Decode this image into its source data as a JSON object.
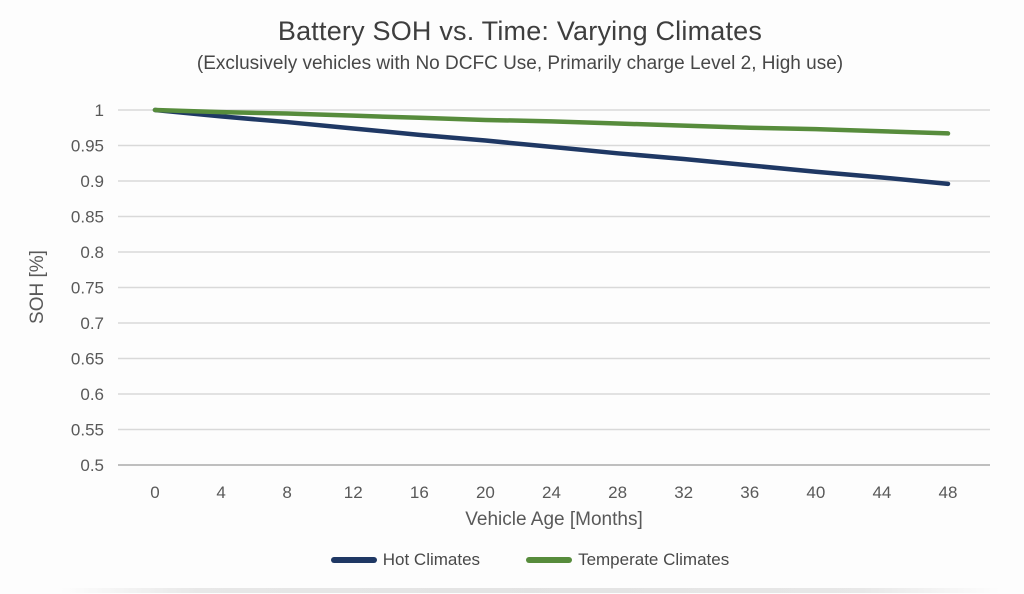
{
  "chart_data": {
    "type": "line",
    "title": "Battery SOH vs. Time: Varying Climates",
    "subtitle": "(Exclusively vehicles with No DCFC Use, Primarily charge Level 2, High use)",
    "xlabel": "Vehicle Age [Months]",
    "ylabel": "SOH [%]",
    "x": [
      0,
      4,
      8,
      12,
      16,
      20,
      24,
      28,
      32,
      36,
      40,
      44,
      48
    ],
    "x_tick_labels": [
      "0",
      "4",
      "8",
      "12",
      "16",
      "20",
      "24",
      "28",
      "32",
      "36",
      "40",
      "44",
      "48"
    ],
    "y_ticks": [
      1,
      0.95,
      0.9,
      0.85,
      0.8,
      0.75,
      0.7,
      0.65,
      0.6,
      0.55,
      0.5
    ],
    "y_tick_labels": [
      "1",
      "0.95",
      "0.9",
      "0.85",
      "0.8",
      "0.75",
      "0.7",
      "0.65",
      "0.6",
      "0.55",
      "0.5"
    ],
    "ylim": [
      0.5,
      1.0
    ],
    "grid": "horizontal",
    "legend_position": "bottom",
    "series": [
      {
        "name": "Hot Climates",
        "color": "#1f3864",
        "values": [
          1.0,
          0.991,
          0.983,
          0.974,
          0.965,
          0.957,
          0.948,
          0.939,
          0.931,
          0.922,
          0.913,
          0.905,
          0.896
        ]
      },
      {
        "name": "Temperate Climates",
        "color": "#578c3c",
        "values": [
          1.0,
          0.997,
          0.995,
          0.992,
          0.989,
          0.986,
          0.984,
          0.981,
          0.978,
          0.975,
          0.973,
          0.97,
          0.967
        ]
      }
    ]
  },
  "colors": {
    "background": "#fdfdfd",
    "gridline": "#d9d9d9",
    "axis_line": "#bfbfbf",
    "title_text": "#3e3e3e",
    "tick_text": "#595959"
  }
}
